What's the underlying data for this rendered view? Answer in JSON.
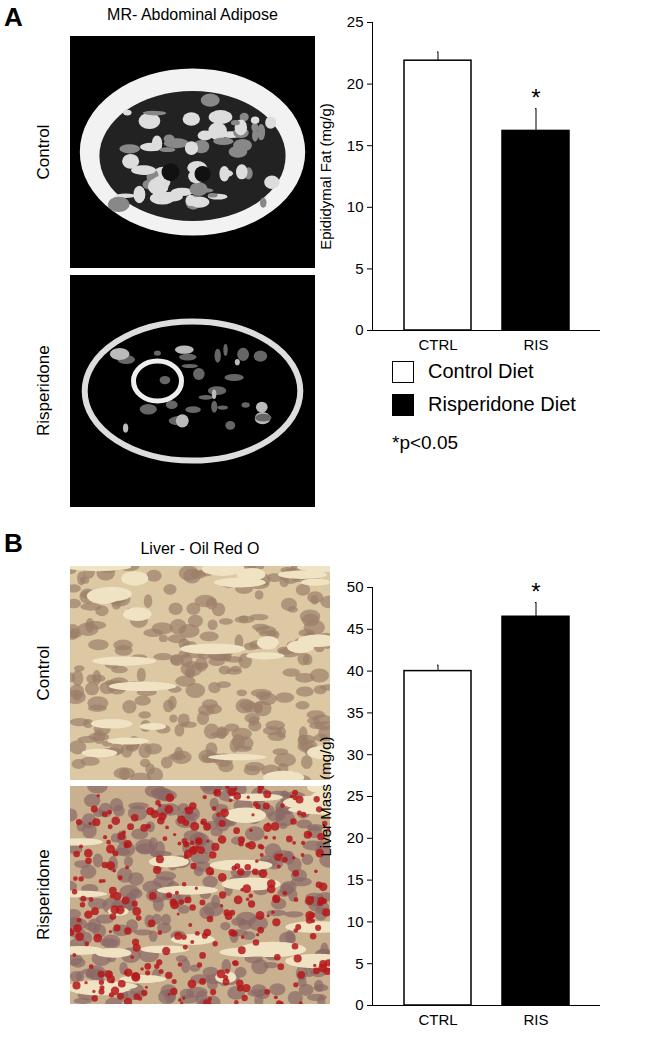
{
  "panels": [
    {
      "label": "A",
      "image_title": "MR- Abdominal Adipose",
      "images": [
        "Control",
        "Risperidone"
      ]
    },
    {
      "label": "B",
      "image_title": "Liver - Oil Red O",
      "images": [
        "Control",
        "Risperidone"
      ]
    }
  ],
  "figure_legend": {
    "items": [
      {
        "name": "Control Diet",
        "color": "#ffffff"
      },
      {
        "name": "Risperidone Diet",
        "color": "#000000"
      }
    ],
    "note": "*p<0.05"
  },
  "chart_data": [
    {
      "type": "bar",
      "categories": [
        "CTRL",
        "RIS"
      ],
      "values": [
        21.9,
        16.2
      ],
      "errors": [
        0.7,
        1.8
      ],
      "colors": [
        "#ffffff",
        "#000000"
      ],
      "y_label": "Epididymal Fat (mg/g)",
      "ylim": [
        0,
        25
      ],
      "yticks": [
        0,
        5,
        10,
        15,
        20,
        25
      ],
      "annotations": [
        {
          "category": "RIS",
          "text": "*"
        }
      ]
    },
    {
      "type": "bar",
      "categories": [
        "CTRL",
        "RIS"
      ],
      "values": [
        40.0,
        46.5
      ],
      "errors": [
        0.7,
        1.7
      ],
      "colors": [
        "#ffffff",
        "#000000"
      ],
      "y_label": "Liver Mass (mg/g)",
      "ylim": [
        0,
        50
      ],
      "yticks": [
        0,
        5,
        10,
        15,
        20,
        25,
        30,
        35,
        40,
        45,
        50
      ],
      "annotations": [
        {
          "category": "RIS",
          "text": "*"
        }
      ]
    }
  ]
}
